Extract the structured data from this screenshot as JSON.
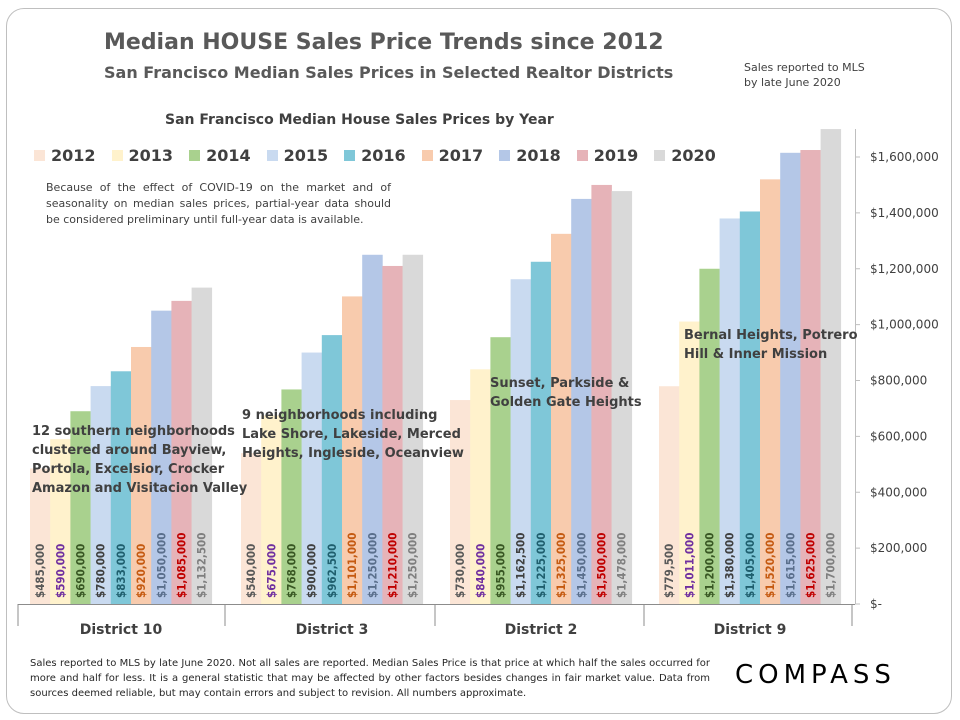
{
  "header": {
    "title": "Median HOUSE Sales Price Trends since 2012",
    "subtitle": "San Francisco Median Sales Prices in Selected Realtor Districts",
    "note_line1": "Sales reported to MLS",
    "note_line2": "by late June 2020"
  },
  "chart_data": {
    "type": "bar",
    "title": "San Francisco Median House Sales Prices by Year",
    "categories": [
      "District 10",
      "District 3",
      "District 2",
      "District 9"
    ],
    "series": [
      {
        "name": "2012",
        "color": "#fbe5d6",
        "label_color": "#595959",
        "values": [
          485000,
          540000,
          730000,
          779500
        ]
      },
      {
        "name": "2013",
        "color": "#fff2cc",
        "label_color": "#7030a0",
        "values": [
          590000,
          675000,
          840000,
          1011000
        ]
      },
      {
        "name": "2014",
        "color": "#a9d18e",
        "label_color": "#385723",
        "values": [
          690000,
          768000,
          955000,
          1200000
        ]
      },
      {
        "name": "2015",
        "color": "#c9daf0",
        "label_color": "#404040",
        "values": [
          780000,
          900000,
          1162500,
          1380000
        ]
      },
      {
        "name": "2016",
        "color": "#7fc7d8",
        "label_color": "#1f5f6e",
        "values": [
          833000,
          962500,
          1225000,
          1405000
        ]
      },
      {
        "name": "2017",
        "color": "#f8cbad",
        "label_color": "#c55a11",
        "values": [
          920000,
          1101000,
          1325000,
          1520000
        ]
      },
      {
        "name": "2018",
        "color": "#b4c7e7",
        "label_color": "#5a6f8c",
        "values": [
          1050000,
          1250000,
          1450000,
          1615000
        ]
      },
      {
        "name": "2019",
        "color": "#e6b3b8",
        "label_color": "#c00000",
        "values": [
          1085000,
          1210000,
          1500000,
          1625000
        ]
      },
      {
        "name": "2020",
        "color": "#d9d9d9",
        "label_color": "#7f7f7f",
        "values": [
          1132500,
          1250000,
          1478000,
          1700000
        ]
      }
    ],
    "data_labels": [
      [
        "$485,000",
        "$540,000",
        "$730,000",
        "$779,500"
      ],
      [
        "$590,000",
        "$675,000",
        "$840,000",
        "$1,011,000"
      ],
      [
        "$690,000",
        "$768,000",
        "$955,000",
        "$1,200,000"
      ],
      [
        "$780,000",
        "$900,000",
        "$1,162,500",
        "$1,380,000"
      ],
      [
        "$833,000",
        "$962,500",
        "$1,225,000",
        "$1,405,000"
      ],
      [
        "$920,000",
        "$1,101,000",
        "$1,325,000",
        "$1,520,000"
      ],
      [
        "$1,050,000",
        "$1,250,000",
        "$1,450,000",
        "$1,615,000"
      ],
      [
        "$1,085,000",
        "$1,210,000",
        "$1,500,000",
        "$1,625,000"
      ],
      [
        "$1,132,500",
        "$1,250,000",
        "$1,478,000",
        "$1,700,000"
      ]
    ],
    "ylim": [
      0,
      1700000
    ],
    "yticks": [
      0,
      200000,
      400000,
      600000,
      800000,
      1000000,
      1200000,
      1400000,
      1600000
    ],
    "ytick_labels": [
      "$-",
      "$200,000",
      "$400,000",
      "$600,000",
      "$800,000",
      "$1,000,000",
      "$1,200,000",
      "$1,400,000",
      "$1,600,000"
    ],
    "y_axis_side": "right",
    "legend_placement": "top",
    "grid": false,
    "annotations": {
      "covid": "Because of the effect of COVID-19 on the market and of seasonality on median sales prices, partial-year data should be considered preliminary until full-year data is available.",
      "d10": [
        "12 southern neighborhoods",
        "clustered around Bayview,",
        "Portola, Excelsior, Crocker",
        "Amazon and Visitacion Valley"
      ],
      "d3": [
        "9 neighborhoods including",
        "Lake Shore, Lakeside, Merced",
        "Heights, Ingleside, Oceanview"
      ],
      "d2": [
        "Sunset, Parkside &",
        "Golden Gate Heights"
      ],
      "d9": [
        "Bernal Heights, Potrero",
        "Hill & Inner Mission"
      ]
    }
  },
  "footer": {
    "text": "Sales reported to MLS by late June 2020. Not all sales are reported. Median Sales Price is that price at which half the sales occurred for more and half for less. It is a general statistic that may be affected by other factors besides changes in fair market value. Data from sources deemed reliable, but may contain errors and subject to revision.  All numbers approximate.",
    "logo": "COMPASS"
  }
}
